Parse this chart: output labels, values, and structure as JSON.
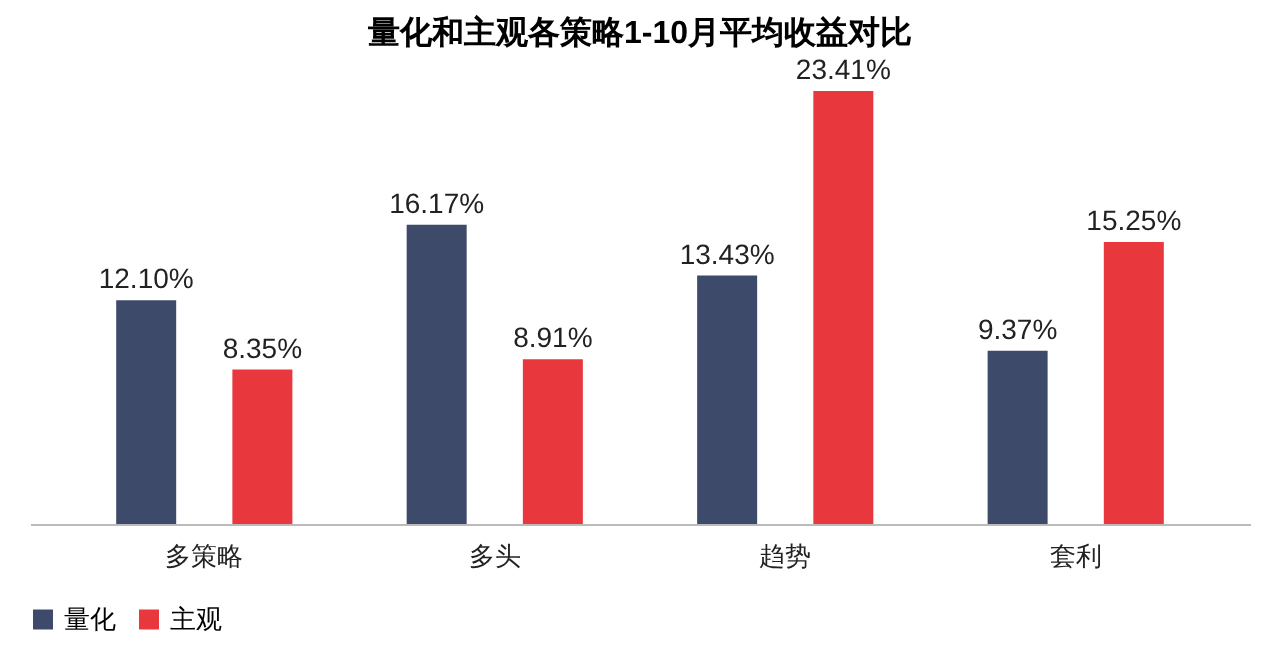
{
  "chart_data": {
    "type": "bar",
    "title": "量化和主观各策略1-10月平均收益对比",
    "categories": [
      "多策略",
      "多头",
      "趋势",
      "套利"
    ],
    "series": [
      {
        "name": "量化",
        "color": "#3d4a6a",
        "values": [
          12.1,
          16.17,
          13.43,
          9.37
        ],
        "value_labels": [
          "12.10%",
          "16.17%",
          "13.43%",
          "9.37%"
        ]
      },
      {
        "name": "主观",
        "color": "#e8383d",
        "values": [
          8.35,
          8.91,
          23.41,
          15.25
        ],
        "value_labels": [
          "8.35%",
          "8.91%",
          "23.41%",
          "15.25%"
        ]
      }
    ],
    "legend": "bottom",
    "grid": false
  }
}
